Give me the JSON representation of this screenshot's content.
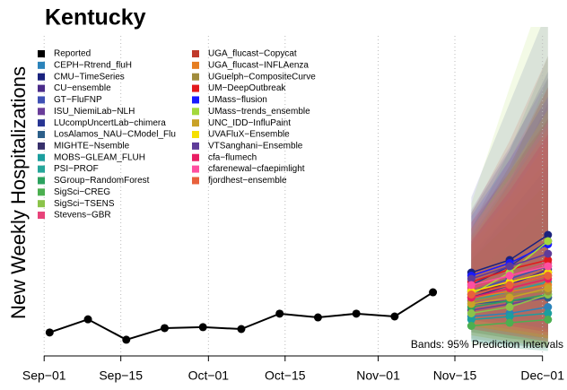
{
  "chart_data": {
    "type": "line",
    "title": "Kentucky",
    "y_label": "New Weekly Hospitalizations",
    "annotation": "Bands: 95% Prediction Intervals",
    "xlim": [
      -2,
      94
    ],
    "ylim": [
      0,
      100
    ],
    "xticks": [
      {
        "value": 0,
        "label": "Sep−01"
      },
      {
        "value": 14,
        "label": "Sep−15"
      },
      {
        "value": 30,
        "label": "Oct−01"
      },
      {
        "value": 44,
        "label": "Oct−15"
      },
      {
        "value": 61,
        "label": "Nov−01"
      },
      {
        "value": 75,
        "label": "Nov−15"
      },
      {
        "value": 91,
        "label": "Dec−01"
      }
    ],
    "grid": true,
    "legend": "top-left",
    "reported": {
      "name": "Reported",
      "color": "#000000",
      "x": [
        1,
        8,
        15,
        22,
        29,
        36,
        43,
        50,
        57,
        64,
        71
      ],
      "values": [
        6.9,
        11.1,
        4.6,
        8.3,
        8.6,
        8,
        12.9,
        11.7,
        12.9,
        12,
        19.7
      ]
    },
    "forecast_x": [
      78,
      85,
      92
    ],
    "series": [
      {
        "name": "CEPH−Rtrend_fluH",
        "color": "#2b83ba",
        "values": [
          12,
          13,
          15
        ],
        "lower": [
          4,
          2,
          1
        ],
        "upper": [
          30,
          45,
          60
        ]
      },
      {
        "name": "CMU−TimeSeries",
        "color": "#1a237e",
        "values": [
          26,
          30,
          38
        ],
        "lower": [
          14,
          12,
          10
        ],
        "upper": [
          45,
          65,
          90
        ]
      },
      {
        "name": "CU−ensemble",
        "color": "#4b2c8a",
        "values": [
          18,
          22,
          27
        ],
        "lower": [
          8,
          6,
          5
        ],
        "upper": [
          40,
          60,
          85
        ]
      },
      {
        "name": "GT−FluFNP",
        "color": "#3f51b5",
        "values": [
          20,
          24,
          28
        ],
        "lower": [
          10,
          8,
          6
        ],
        "upper": [
          38,
          55,
          75
        ]
      },
      {
        "name": "ISU_NiemiLab−NLH",
        "color": "#6a3d9a",
        "values": [
          14,
          16,
          18
        ],
        "lower": [
          5,
          3,
          2
        ],
        "upper": [
          35,
          55,
          80
        ]
      },
      {
        "name": "LUcompUncertLab−chimera",
        "color": "#283593",
        "values": [
          22,
          28,
          36
        ],
        "lower": [
          10,
          8,
          6
        ],
        "upper": [
          50,
          80,
          110
        ]
      },
      {
        "name": "LosAlamos_NAU−CModel_Flu",
        "color": "#2c5f8a",
        "values": [
          16,
          17,
          18
        ],
        "lower": [
          7,
          5,
          4
        ],
        "upper": [
          32,
          45,
          60
        ]
      },
      {
        "name": "MIGHTE−Nsemble",
        "color": "#37306b",
        "values": [
          19,
          23,
          26
        ],
        "lower": [
          9,
          7,
          5
        ],
        "upper": [
          36,
          52,
          70
        ]
      },
      {
        "name": "MOBS−GLEAM_FLUH",
        "color": "#1b9e9e",
        "values": [
          11,
          12,
          13
        ],
        "lower": [
          4,
          3,
          2
        ],
        "upper": [
          25,
          35,
          48
        ]
      },
      {
        "name": "PSI−PROF",
        "color": "#26a69a",
        "values": [
          17,
          20,
          23
        ],
        "lower": [
          7,
          5,
          4
        ],
        "upper": [
          40,
          65,
          95
        ]
      },
      {
        "name": "SGroup−RandomForest",
        "color": "#2ca25f",
        "values": [
          15,
          17,
          19
        ],
        "lower": [
          6,
          4,
          3
        ],
        "upper": [
          30,
          42,
          55
        ]
      },
      {
        "name": "SigSci−CREG",
        "color": "#4caf50",
        "values": [
          9,
          10,
          11
        ],
        "lower": [
          3,
          2,
          1
        ],
        "upper": [
          22,
          30,
          40
        ]
      },
      {
        "name": "SigSci−TSENS",
        "color": "#8bc34a",
        "values": [
          13,
          15,
          19
        ],
        "lower": [
          5,
          3,
          2
        ],
        "upper": [
          35,
          58,
          88
        ]
      },
      {
        "name": "Stevens−GBR",
        "color": "#e8437a",
        "values": [
          21,
          25,
          29
        ],
        "lower": [
          10,
          8,
          6
        ],
        "upper": [
          42,
          62,
          85
        ]
      },
      {
        "name": "UGA_flucast−Copycat",
        "color": "#c0392b",
        "values": [
          20,
          22,
          25
        ],
        "lower": [
          9,
          7,
          5
        ],
        "upper": [
          45,
          68,
          95
        ]
      },
      {
        "name": "UGA_flucast−INFLAenza",
        "color": "#e67e22",
        "values": [
          18,
          20,
          22
        ],
        "lower": [
          8,
          6,
          4
        ],
        "upper": [
          35,
          50,
          68
        ]
      },
      {
        "name": "UGuelph−CompositeCurve",
        "color": "#a08c3c",
        "values": [
          17,
          19,
          20
        ],
        "lower": [
          7,
          5,
          3
        ],
        "upper": [
          33,
          48,
          62
        ]
      },
      {
        "name": "UM−DeepOutbreak",
        "color": "#e31a1c",
        "values": [
          23,
          27,
          30
        ],
        "lower": [
          11,
          9,
          7
        ],
        "upper": [
          42,
          58,
          75
        ]
      },
      {
        "name": "UMass−flusion",
        "color": "#1a1aff",
        "values": [
          25,
          29,
          35
        ],
        "lower": [
          12,
          10,
          8
        ],
        "upper": [
          44,
          62,
          82
        ]
      },
      {
        "name": "UMass−trends_ensemble",
        "color": "#a4d93c",
        "values": [
          19,
          26,
          36
        ],
        "lower": [
          9,
          7,
          5
        ],
        "upper": [
          48,
          85,
          120
        ]
      },
      {
        "name": "UNC_IDD−InfluPaint",
        "color": "#c9a227",
        "values": [
          16,
          18,
          21
        ],
        "lower": [
          6,
          4,
          2
        ],
        "upper": [
          38,
          60,
          85
        ]
      },
      {
        "name": "UVAFluX−Ensemble",
        "color": "#f5e000",
        "values": [
          20,
          23,
          26
        ],
        "lower": [
          9,
          7,
          5
        ],
        "upper": [
          40,
          58,
          78
        ]
      },
      {
        "name": "VTSanghani−Ensemble",
        "color": "#5e3c99",
        "values": [
          24,
          28,
          32
        ],
        "lower": [
          11,
          9,
          7
        ],
        "upper": [
          46,
          66,
          88
        ]
      },
      {
        "name": "cfa−flumech",
        "color": "#e91e63",
        "values": [
          18,
          21,
          24
        ],
        "lower": [
          8,
          6,
          4
        ],
        "upper": [
          36,
          52,
          70
        ]
      },
      {
        "name": "cfarenewal−cfaepimlight",
        "color": "#ff4fa0",
        "values": [
          22,
          25,
          28
        ],
        "lower": [
          10,
          8,
          6
        ],
        "upper": [
          40,
          56,
          74
        ]
      },
      {
        "name": "fjordhest−ensemble",
        "color": "#e8613c",
        "values": [
          19,
          22,
          25
        ],
        "lower": [
          9,
          7,
          5
        ],
        "upper": [
          37,
          54,
          72
        ]
      }
    ]
  }
}
